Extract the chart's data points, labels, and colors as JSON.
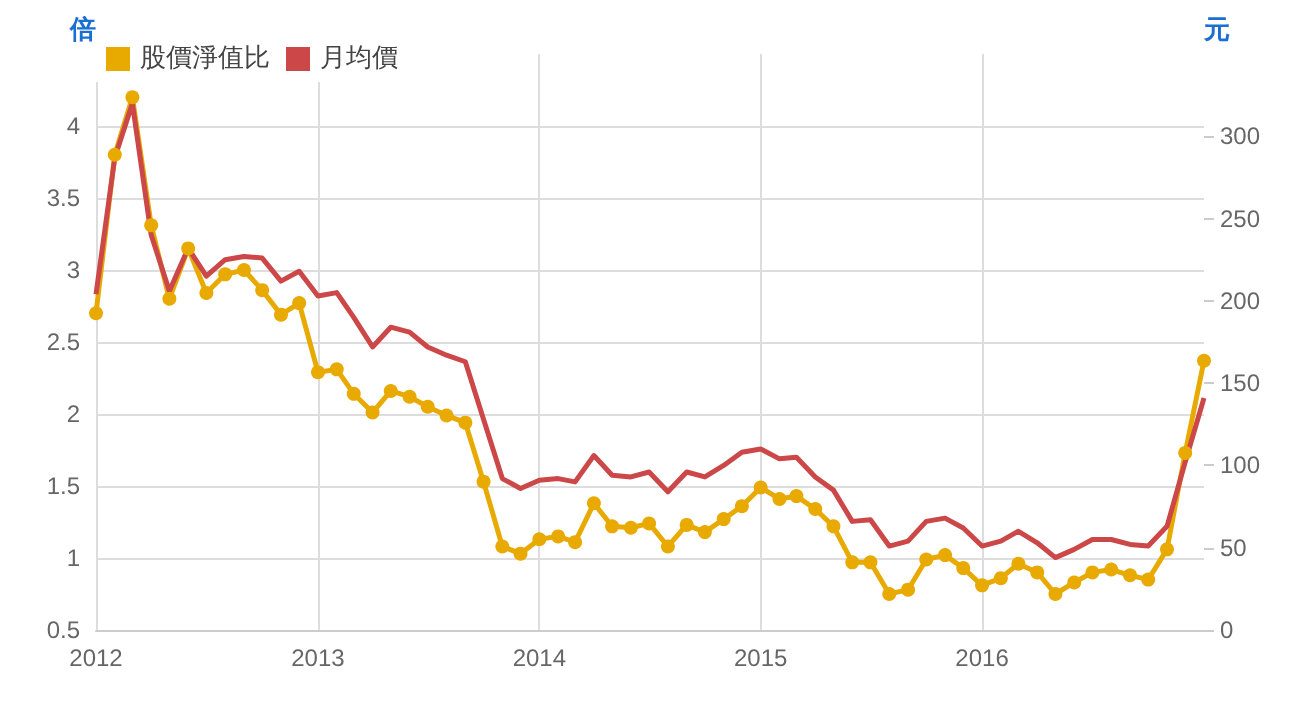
{
  "chart_data": {
    "type": "line",
    "ylabel": "倍",
    "y2label": "元",
    "x": [
      "2012-01",
      "2012-02",
      "2012-03",
      "2012-04",
      "2012-05",
      "2012-06",
      "2012-07",
      "2012-08",
      "2012-09",
      "2012-10",
      "2012-11",
      "2012-12",
      "2013-01",
      "2013-02",
      "2013-03",
      "2013-04",
      "2013-05",
      "2013-06",
      "2013-07",
      "2013-08",
      "2013-09",
      "2013-10",
      "2013-11",
      "2013-12",
      "2014-01",
      "2014-02",
      "2014-03",
      "2014-04",
      "2014-05",
      "2014-06",
      "2014-07",
      "2014-08",
      "2014-09",
      "2014-10",
      "2014-11",
      "2014-12",
      "2015-01",
      "2015-02",
      "2015-03",
      "2015-04",
      "2015-05",
      "2015-06",
      "2015-07",
      "2015-08",
      "2015-09",
      "2015-10",
      "2015-11",
      "2015-12",
      "2016-01",
      "2016-02",
      "2016-03",
      "2016-04",
      "2016-05",
      "2016-06",
      "2016-07",
      "2016-08",
      "2016-09",
      "2016-10",
      "2016-11",
      "2016-12",
      "2017-01"
    ],
    "series": [
      {
        "name": "股價淨值比",
        "color": "#e8aa00",
        "marker": "circle",
        "values": [
          2.7,
          3.8,
          4.2,
          3.31,
          2.8,
          3.15,
          2.84,
          2.97,
          3.0,
          2.86,
          2.69,
          2.77,
          2.29,
          2.31,
          2.14,
          2.01,
          2.16,
          2.12,
          2.05,
          1.99,
          1.94,
          1.53,
          1.08,
          1.03,
          1.13,
          1.15,
          1.11,
          1.38,
          1.22,
          1.21,
          1.24,
          1.08,
          1.23,
          1.18,
          1.27,
          1.36,
          1.49,
          1.41,
          1.43,
          1.34,
          1.22,
          0.97,
          0.97,
          0.75,
          0.78,
          0.99,
          1.02,
          0.93,
          0.81,
          0.86,
          0.96,
          0.9,
          0.75,
          0.83,
          0.9,
          0.92,
          0.88,
          0.85,
          1.06,
          1.73,
          2.37
        ]
      },
      {
        "name": "月均價",
        "color": "#cc4747",
        "marker": "none",
        "axis": "y2",
        "values": [
          204,
          287,
          320,
          240,
          206,
          232,
          215,
          225,
          227,
          226,
          212,
          218,
          203,
          205,
          190,
          172,
          184,
          181,
          172,
          167,
          163,
          128,
          92,
          86,
          91,
          92,
          90,
          106,
          94,
          93,
          96,
          84,
          96,
          93,
          100,
          108,
          110,
          104,
          105,
          93,
          85,
          66,
          67,
          51,
          54,
          66,
          68,
          62,
          51,
          54,
          60,
          53,
          44,
          49,
          55,
          55,
          52,
          51,
          63,
          102,
          141
        ]
      }
    ],
    "xlim": [
      "2012-01",
      "2017-01"
    ],
    "xticks": [
      {
        "value": "2012-01",
        "label": "2012"
      },
      {
        "value": "2013-01",
        "label": "2013"
      },
      {
        "value": "2014-01",
        "label": "2014"
      },
      {
        "value": "2015-01",
        "label": "2015"
      },
      {
        "value": "2016-01",
        "label": "2016"
      }
    ],
    "ylim": [
      0.5,
      4.5
    ],
    "yticks": [
      0.5,
      1,
      1.5,
      2,
      2.5,
      3,
      3.5,
      4
    ],
    "y2lim": [
      0,
      350
    ],
    "y2ticks": [
      0,
      50,
      100,
      150,
      200,
      250,
      300
    ],
    "grid": true,
    "legend": "top left"
  }
}
